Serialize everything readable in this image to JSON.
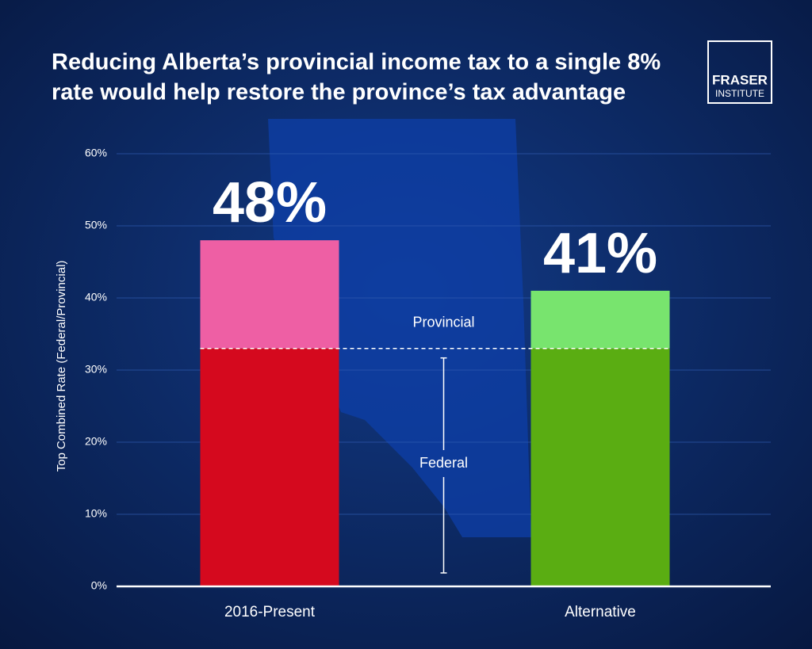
{
  "chart_data": {
    "type": "stacked-bar",
    "title": [
      "Reducing Alberta’s provincial income tax to a single 8%",
      "rate would help restore the province’s tax advantage"
    ],
    "logo": [
      "FRASER",
      "INSTITUTE"
    ],
    "y_label": "Top Combined Rate (Federal/Provincial)",
    "categories": [
      "2016-Present",
      "Alternative"
    ],
    "series": [
      {
        "name": "Federal",
        "colors": [
          "#d5091e",
          "#5aad12"
        ],
        "values": [
          33,
          33
        ]
      },
      {
        "name": "Provincial",
        "colors": [
          "#ee5fa4",
          "#78e46e"
        ],
        "values": [
          15,
          8
        ]
      }
    ],
    "total_labels": [
      "48%",
      "41%"
    ],
    "ylim": [
      0,
      60
    ],
    "yticks": [
      {
        "value": 0,
        "label": "0%"
      },
      {
        "value": 10,
        "label": "10%"
      },
      {
        "value": 20,
        "label": "20%"
      },
      {
        "value": 30,
        "label": "30%"
      },
      {
        "value": 40,
        "label": "40%"
      },
      {
        "value": 50,
        "label": "50%"
      },
      {
        "value": 60,
        "label": "60%"
      }
    ],
    "grid": true
  }
}
